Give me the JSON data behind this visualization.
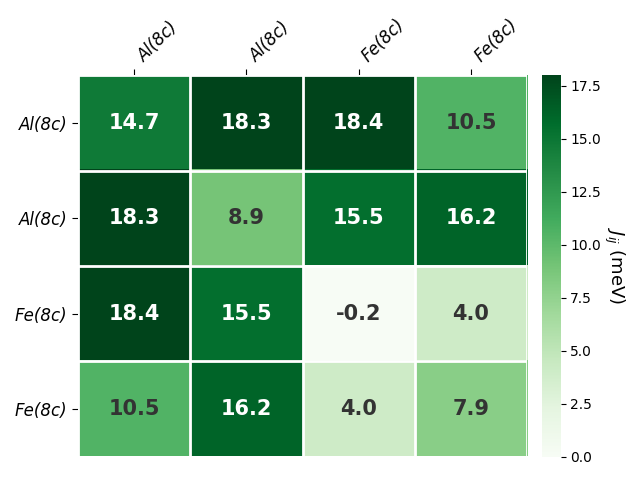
{
  "matrix": [
    [
      14.7,
      18.3,
      18.4,
      10.5
    ],
    [
      18.3,
      8.9,
      15.5,
      16.2
    ],
    [
      18.4,
      15.5,
      -0.2,
      4.0
    ],
    [
      10.5,
      16.2,
      4.0,
      7.9
    ]
  ],
  "row_labels": [
    "Al(8c)",
    "Al(8c)",
    "Fe(8c)",
    "Fe(8c)"
  ],
  "col_labels": [
    "Al(8c)",
    "Al(8c)",
    "Fe(8c)",
    "Fe(8c)"
  ],
  "vmin": 0.0,
  "vmax": 18.0,
  "cmap": "Greens",
  "colorbar_label": "$J_{ij}$ (meV)",
  "cell_text_fontsize": 15,
  "label_fontsize": 12,
  "colorbar_fontsize": 13,
  "colorbar_ticks": [
    0.0,
    2.5,
    5.0,
    7.5,
    10.0,
    12.5,
    15.0,
    17.5
  ],
  "colorbar_ticklabels": [
    "0.0",
    "2.5",
    "5.0",
    "7.5",
    "10.0",
    "12.5",
    "15.0",
    "17.5"
  ]
}
